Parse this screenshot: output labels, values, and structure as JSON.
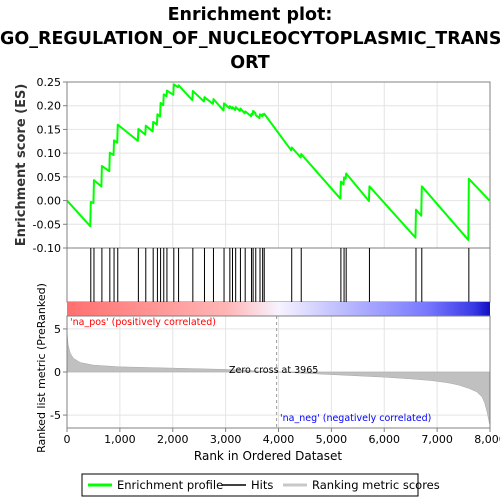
{
  "header": {
    "title_line1": "Enrichment plot:",
    "title_line2": "GO_REGULATION_OF_NUCLEOCYTOPLASMIC_TRANSP",
    "title_line3": "ORT"
  },
  "chart_data": {
    "type": "line",
    "title": "Enrichment plot: GO_REGULATION_OF_NUCLEOCYTOPLASMIC_TRANSPORT",
    "xlabel": "Rank in Ordered Dataset",
    "xlim": [
      0,
      8000
    ],
    "x_ticks": [
      0,
      1000,
      2000,
      3000,
      4000,
      5000,
      6000,
      7000,
      8000
    ],
    "x_tick_labels": [
      "0",
      "1,000",
      "2,000",
      "3,000",
      "4,000",
      "5,000",
      "6,000",
      "7,000",
      "8,000"
    ],
    "panels": {
      "es": {
        "ylabel": "Enrichment score (ES)",
        "ylim": [
          -0.1,
          0.25
        ],
        "y_ticks": [
          -0.1,
          -0.05,
          0.0,
          0.05,
          0.1,
          0.15,
          0.2,
          0.25
        ],
        "y_tick_labels": [
          "-0.10",
          "-0.05",
          "0.00",
          "0.05",
          "0.10",
          "0.15",
          "0.20",
          "0.25"
        ],
        "grid": true
      },
      "metric": {
        "ylabel": "Ranked list metric (PreRanked)",
        "ylim": [
          -6.5,
          6.5
        ],
        "y_ticks": [
          5,
          0,
          -5
        ],
        "y_tick_labels": [
          "5",
          "0",
          "-5"
        ],
        "grid": true
      }
    },
    "series": [
      {
        "name": "Enrichment profile",
        "color": "#00ff00",
        "x": [
          0,
          440,
          450,
          500,
          510,
          650,
          660,
          800,
          810,
          880,
          890,
          950,
          960,
          1340,
          1350,
          1480,
          1490,
          1620,
          1630,
          1700,
          1710,
          1760,
          1770,
          1820,
          1830,
          1880,
          1890,
          2010,
          2020,
          2100,
          2110,
          2370,
          2380,
          2590,
          2600,
          2760,
          2770,
          2960,
          2970,
          3070,
          3080,
          3120,
          3130,
          3180,
          3190,
          3270,
          3280,
          3360,
          3370,
          3480,
          3490,
          3510,
          3520,
          3560,
          3570,
          3640,
          3650,
          3690,
          3700,
          3720,
          3730,
          4240,
          4250,
          4420,
          4430,
          5170,
          5180,
          5230,
          5240,
          5270,
          5280,
          5710,
          5720,
          6590,
          6600,
          6700,
          6710,
          7590,
          7600,
          7990
        ],
        "y": [
          0.0,
          -0.054,
          -0.003,
          -0.005,
          0.043,
          0.03,
          0.073,
          0.062,
          0.101,
          0.096,
          0.127,
          0.122,
          0.16,
          0.126,
          0.151,
          0.139,
          0.158,
          0.146,
          0.166,
          0.16,
          0.182,
          0.177,
          0.206,
          0.201,
          0.224,
          0.22,
          0.232,
          0.223,
          0.245,
          0.239,
          0.243,
          0.212,
          0.231,
          0.209,
          0.218,
          0.204,
          0.214,
          0.19,
          0.205,
          0.195,
          0.199,
          0.194,
          0.197,
          0.191,
          0.197,
          0.189,
          0.194,
          0.184,
          0.188,
          0.178,
          0.183,
          0.181,
          0.189,
          0.185,
          0.18,
          0.174,
          0.182,
          0.178,
          0.182,
          0.18,
          0.183,
          0.106,
          0.112,
          0.091,
          0.098,
          0.004,
          0.04,
          0.034,
          0.049,
          0.046,
          0.057,
          -0.001,
          0.03,
          -0.078,
          -0.019,
          -0.032,
          0.03,
          -0.083,
          0.046,
          0.0
        ]
      },
      {
        "name": "Hits",
        "color": "#000000",
        "values": [
          450,
          510,
          660,
          810,
          890,
          960,
          1350,
          1490,
          1630,
          1710,
          1770,
          1830,
          1890,
          2020,
          2110,
          2380,
          2600,
          2770,
          2970,
          3080,
          3130,
          3190,
          3280,
          3370,
          3490,
          3520,
          3570,
          3650,
          3700,
          3730,
          4250,
          4430,
          5180,
          5240,
          5280,
          5720,
          6600,
          6710,
          7600
        ]
      },
      {
        "name": "Ranking metric scores",
        "color": "#c0c0c0",
        "x": [
          0,
          20,
          60,
          120,
          250,
          500,
          1000,
          2000,
          3000,
          3500,
          3965,
          4500,
          5000,
          5500,
          6000,
          6500,
          6900,
          7200,
          7400,
          7600,
          7750,
          7850,
          7900,
          7950,
          7990
        ],
        "y": [
          4.8,
          3.2,
          2.2,
          1.6,
          1.1,
          0.8,
          0.6,
          0.45,
          0.3,
          0.15,
          0.0,
          -0.15,
          -0.3,
          -0.45,
          -0.6,
          -0.8,
          -1.0,
          -1.25,
          -1.5,
          -1.9,
          -2.3,
          -2.9,
          -3.6,
          -4.8,
          -6.0
        ]
      }
    ],
    "legend": {
      "position": "bottom",
      "entries": [
        "Enrichment profile",
        "Hits",
        "Ranking metric scores"
      ]
    },
    "annotations": {
      "pos_label": "'na_pos' (positively correlated)",
      "neg_label": "'na_neg' (negatively correlated)",
      "zero_cross_label": "Zero cross at 3965",
      "zero_cross_x": 3965
    },
    "colors": {
      "pos": "#ff0000",
      "neg": "#0000ff",
      "pos_text": "#ff0000",
      "neg_text": "#0000ff"
    }
  }
}
